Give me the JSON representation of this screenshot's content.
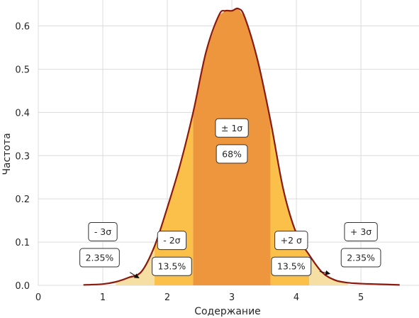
{
  "chart_data": {
    "type": "area",
    "title": "",
    "xlabel": "Содержание",
    "ylabel": "Частота",
    "xlim": [
      0,
      5.9
    ],
    "ylim": [
      0,
      0.66
    ],
    "xticks": [
      0,
      1,
      2,
      3,
      4,
      5
    ],
    "yticks": [
      0.0,
      0.1,
      0.2,
      0.3,
      0.4,
      0.5,
      0.6
    ],
    "xtick_labels": [
      "0",
      "1",
      "2",
      "3",
      "4",
      "5"
    ],
    "ytick_labels": [
      "0.0",
      "0.1",
      "0.2",
      "0.3",
      "0.4",
      "0.5",
      "0.6"
    ],
    "grid": true,
    "curve": {
      "x": [
        0.7,
        1.0,
        1.2,
        1.4,
        1.6,
        1.8,
        2.0,
        2.2,
        2.4,
        2.6,
        2.8,
        2.9,
        3.0,
        3.1,
        3.2,
        3.4,
        3.6,
        3.8,
        4.0,
        4.2,
        4.4,
        4.6,
        4.8,
        5.0,
        5.2,
        5.4,
        5.6
      ],
      "y": [
        0.001,
        0.003,
        0.008,
        0.018,
        0.032,
        0.09,
        0.18,
        0.28,
        0.4,
        0.54,
        0.625,
        0.635,
        0.635,
        0.64,
        0.62,
        0.52,
        0.38,
        0.22,
        0.12,
        0.07,
        0.03,
        0.012,
        0.006,
        0.004,
        0.003,
        0.002,
        0.001
      ]
    },
    "bands": [
      {
        "name": "-3σ",
        "x": [
          1.2,
          1.8
        ],
        "color": "#f5dfa3"
      },
      {
        "name": "-2σ",
        "x": [
          1.8,
          2.4
        ],
        "color": "#fbc04a"
      },
      {
        "name": "±1σ",
        "x": [
          2.4,
          3.6
        ],
        "color": "#ee963e"
      },
      {
        "name": "+2σ",
        "x": [
          3.6,
          4.2
        ],
        "color": "#fbc04a"
      },
      {
        "name": "+3σ",
        "x": [
          4.2,
          4.8
        ],
        "color": "#f5dfa3"
      }
    ],
    "line_color": "#8b1a0e",
    "annotations": [
      {
        "key": "m3-label",
        "text": "- 3σ",
        "x": 1.0,
        "y": 0.124
      },
      {
        "key": "m3-pct",
        "text": "2.35%",
        "x": 0.95,
        "y": 0.064
      },
      {
        "key": "m2-label",
        "text": "- 2σ",
        "x": 2.07,
        "y": 0.104
      },
      {
        "key": "m2-pct",
        "text": "13.5%",
        "x": 2.07,
        "y": 0.044
      },
      {
        "key": "c-label",
        "text": "± 1σ",
        "x": 3.0,
        "y": 0.364
      },
      {
        "key": "c-pct",
        "text": "68%",
        "x": 3.0,
        "y": 0.304
      },
      {
        "key": "p2-label",
        "text": "+2 σ",
        "x": 3.92,
        "y": 0.104
      },
      {
        "key": "p2-pct",
        "text": "13.5%",
        "x": 3.92,
        "y": 0.044
      },
      {
        "key": "p3-label",
        "text": "+ 3σ",
        "x": 5.0,
        "y": 0.124
      },
      {
        "key": "p3-pct",
        "text": "2.35%",
        "x": 5.0,
        "y": 0.064
      }
    ],
    "arrows": [
      {
        "key": "arrow-left",
        "from": [
          1.42,
          0.03
        ],
        "to": [
          1.56,
          0.017
        ]
      },
      {
        "key": "arrow-right",
        "from": [
          4.36,
          0.032
        ],
        "to": [
          4.52,
          0.027
        ]
      }
    ]
  }
}
